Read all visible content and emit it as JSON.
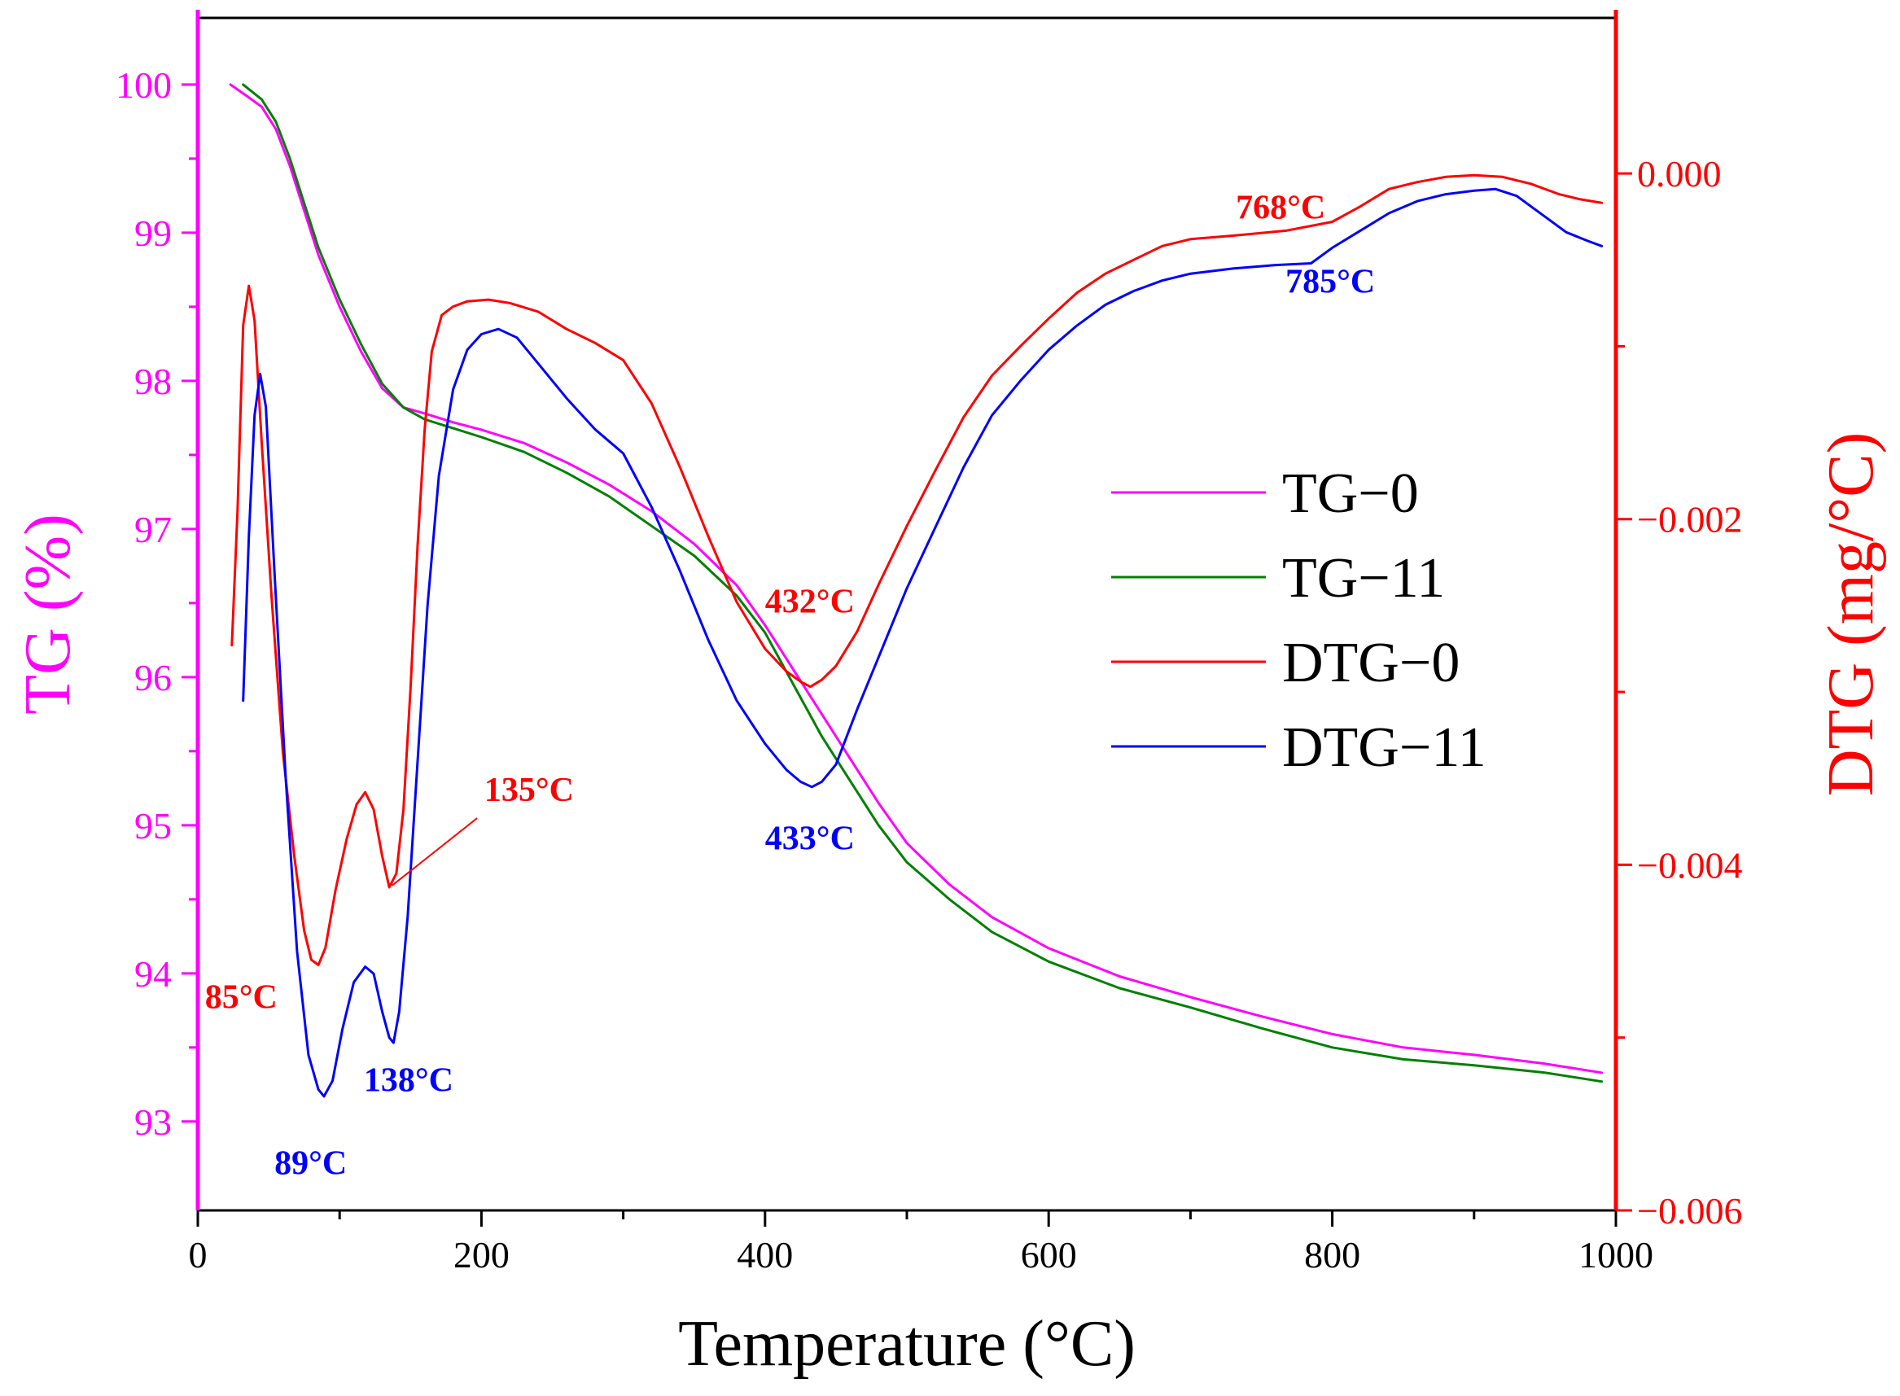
{
  "chart_data": {
    "type": "line",
    "x_axis": {
      "label": "Temperature (°C)",
      "range": [
        0,
        1000
      ],
      "ticks": [
        0,
        200,
        400,
        600,
        800,
        1000
      ],
      "tick_labels": [
        "0",
        "200",
        "400",
        "600",
        "800",
        "1000"
      ],
      "color": "#000000"
    },
    "y_axis_left": {
      "label": "TG (%)",
      "range": [
        92.4,
        100.45
      ],
      "ticks": [
        93,
        94,
        95,
        96,
        97,
        98,
        99,
        100
      ],
      "tick_labels": [
        "93",
        "94",
        "95",
        "96",
        "97",
        "98",
        "99",
        "100"
      ],
      "color": "#ff00ff"
    },
    "y_axis_right": {
      "label": "DTG (mg/°C)",
      "range": [
        -0.006,
        0.0009
      ],
      "ticks": [
        0.0,
        -0.002,
        -0.004,
        -0.006
      ],
      "tick_labels": [
        "0.000",
        "−0.002",
        "−0.004",
        "−0.006"
      ],
      "color": "#ff0000"
    },
    "series": [
      {
        "name": "TG−0",
        "axis": "left",
        "color": "#ff00ff",
        "points": [
          [
            23,
            100.0
          ],
          [
            35,
            99.92
          ],
          [
            45,
            99.85
          ],
          [
            55,
            99.7
          ],
          [
            65,
            99.45
          ],
          [
            75,
            99.15
          ],
          [
            85,
            98.85
          ],
          [
            100,
            98.5
          ],
          [
            115,
            98.2
          ],
          [
            130,
            97.95
          ],
          [
            145,
            97.82
          ],
          [
            160,
            97.78
          ],
          [
            180,
            97.72
          ],
          [
            200,
            97.67
          ],
          [
            230,
            97.58
          ],
          [
            260,
            97.45
          ],
          [
            290,
            97.3
          ],
          [
            320,
            97.12
          ],
          [
            350,
            96.9
          ],
          [
            380,
            96.62
          ],
          [
            400,
            96.35
          ],
          [
            420,
            96.05
          ],
          [
            440,
            95.75
          ],
          [
            460,
            95.45
          ],
          [
            480,
            95.15
          ],
          [
            500,
            94.88
          ],
          [
            530,
            94.6
          ],
          [
            560,
            94.38
          ],
          [
            600,
            94.17
          ],
          [
            650,
            93.98
          ],
          [
            700,
            93.84
          ],
          [
            750,
            93.71
          ],
          [
            800,
            93.59
          ],
          [
            850,
            93.5
          ],
          [
            900,
            93.45
          ],
          [
            950,
            93.39
          ],
          [
            990,
            93.33
          ]
        ]
      },
      {
        "name": "TG−11",
        "axis": "left",
        "color": "#008000",
        "points": [
          [
            32,
            100.0
          ],
          [
            45,
            99.9
          ],
          [
            55,
            99.75
          ],
          [
            65,
            99.5
          ],
          [
            75,
            99.2
          ],
          [
            85,
            98.9
          ],
          [
            100,
            98.55
          ],
          [
            115,
            98.25
          ],
          [
            130,
            97.98
          ],
          [
            145,
            97.82
          ],
          [
            160,
            97.74
          ],
          [
            180,
            97.68
          ],
          [
            200,
            97.62
          ],
          [
            230,
            97.52
          ],
          [
            260,
            97.38
          ],
          [
            290,
            97.22
          ],
          [
            320,
            97.02
          ],
          [
            350,
            96.82
          ],
          [
            380,
            96.55
          ],
          [
            400,
            96.3
          ],
          [
            420,
            95.95
          ],
          [
            440,
            95.6
          ],
          [
            460,
            95.3
          ],
          [
            480,
            95.0
          ],
          [
            500,
            94.75
          ],
          [
            530,
            94.5
          ],
          [
            560,
            94.28
          ],
          [
            600,
            94.08
          ],
          [
            650,
            93.9
          ],
          [
            700,
            93.77
          ],
          [
            750,
            93.63
          ],
          [
            800,
            93.5
          ],
          [
            850,
            93.42
          ],
          [
            900,
            93.38
          ],
          [
            950,
            93.33
          ],
          [
            990,
            93.27
          ]
        ]
      },
      {
        "name": "DTG−0",
        "axis": "right",
        "color": "#ff0000",
        "points": [
          [
            24,
            -0.00273
          ],
          [
            28,
            -0.00195
          ],
          [
            32,
            -0.00088
          ],
          [
            36,
            -0.00065
          ],
          [
            40,
            -0.00085
          ],
          [
            45,
            -0.00155
          ],
          [
            52,
            -0.00245
          ],
          [
            60,
            -0.00335
          ],
          [
            68,
            -0.00395
          ],
          [
            75,
            -0.00438
          ],
          [
            80,
            -0.00455
          ],
          [
            85,
            -0.00458
          ],
          [
            90,
            -0.00448
          ],
          [
            97,
            -0.00415
          ],
          [
            105,
            -0.00385
          ],
          [
            112,
            -0.00365
          ],
          [
            118,
            -0.00358
          ],
          [
            124,
            -0.00368
          ],
          [
            130,
            -0.00395
          ],
          [
            135,
            -0.00413
          ],
          [
            140,
            -0.00405
          ],
          [
            145,
            -0.00368
          ],
          [
            150,
            -0.00298
          ],
          [
            155,
            -0.00215
          ],
          [
            160,
            -0.00148
          ],
          [
            165,
            -0.00103
          ],
          [
            172,
            -0.00082
          ],
          [
            180,
            -0.00077
          ],
          [
            190,
            -0.00074
          ],
          [
            205,
            -0.00073
          ],
          [
            220,
            -0.00075
          ],
          [
            240,
            -0.0008
          ],
          [
            260,
            -0.0009
          ],
          [
            280,
            -0.00098
          ],
          [
            300,
            -0.00108
          ],
          [
            320,
            -0.00133
          ],
          [
            340,
            -0.0017
          ],
          [
            360,
            -0.0021
          ],
          [
            380,
            -0.00248
          ],
          [
            400,
            -0.00275
          ],
          [
            415,
            -0.00288
          ],
          [
            425,
            -0.00294
          ],
          [
            432,
            -0.00297
          ],
          [
            440,
            -0.00293
          ],
          [
            450,
            -0.00285
          ],
          [
            465,
            -0.00265
          ],
          [
            480,
            -0.00238
          ],
          [
            500,
            -0.00204
          ],
          [
            520,
            -0.00172
          ],
          [
            540,
            -0.00141
          ],
          [
            560,
            -0.00117
          ],
          [
            580,
            -0.001
          ],
          [
            600,
            -0.00084
          ],
          [
            620,
            -0.00069
          ],
          [
            640,
            -0.00058
          ],
          [
            660,
            -0.0005
          ],
          [
            680,
            -0.00042
          ],
          [
            700,
            -0.00038
          ],
          [
            730,
            -0.00036
          ],
          [
            768,
            -0.00033
          ],
          [
            800,
            -0.00028
          ],
          [
            820,
            -0.00019
          ],
          [
            840,
            -9e-05
          ],
          [
            860,
            -5e-05
          ],
          [
            880,
            -2e-05
          ],
          [
            900,
            -1e-05
          ],
          [
            920,
            -2e-05
          ],
          [
            940,
            -6e-05
          ],
          [
            960,
            -0.00012
          ],
          [
            975,
            -0.00015
          ],
          [
            990,
            -0.00017
          ]
        ]
      },
      {
        "name": "DTG−11",
        "axis": "right",
        "color": "#0000ff",
        "points": [
          [
            32,
            -0.00305
          ],
          [
            36,
            -0.0021
          ],
          [
            40,
            -0.0014
          ],
          [
            44,
            -0.00116
          ],
          [
            48,
            -0.00135
          ],
          [
            54,
            -0.0023
          ],
          [
            62,
            -0.0035
          ],
          [
            70,
            -0.0045
          ],
          [
            78,
            -0.0051
          ],
          [
            85,
            -0.0053
          ],
          [
            89,
            -0.00534
          ],
          [
            95,
            -0.00525
          ],
          [
            102,
            -0.00495
          ],
          [
            110,
            -0.00468
          ],
          [
            118,
            -0.00459
          ],
          [
            124,
            -0.00463
          ],
          [
            130,
            -0.00485
          ],
          [
            135,
            -0.005
          ],
          [
            138,
            -0.00503
          ],
          [
            142,
            -0.00485
          ],
          [
            148,
            -0.0043
          ],
          [
            155,
            -0.0034
          ],
          [
            162,
            -0.0025
          ],
          [
            170,
            -0.00175
          ],
          [
            180,
            -0.00125
          ],
          [
            190,
            -0.00102
          ],
          [
            200,
            -0.00093
          ],
          [
            212,
            -0.0009
          ],
          [
            225,
            -0.00095
          ],
          [
            240,
            -0.0011
          ],
          [
            260,
            -0.0013
          ],
          [
            280,
            -0.00148
          ],
          [
            300,
            -0.00162
          ],
          [
            320,
            -0.00193
          ],
          [
            340,
            -0.0023
          ],
          [
            360,
            -0.0027
          ],
          [
            380,
            -0.00305
          ],
          [
            400,
            -0.0033
          ],
          [
            415,
            -0.00345
          ],
          [
            425,
            -0.00352
          ],
          [
            433,
            -0.00355
          ],
          [
            440,
            -0.00352
          ],
          [
            450,
            -0.00342
          ],
          [
            465,
            -0.0031
          ],
          [
            480,
            -0.0028
          ],
          [
            500,
            -0.0024
          ],
          [
            520,
            -0.00205
          ],
          [
            540,
            -0.0017
          ],
          [
            560,
            -0.0014
          ],
          [
            580,
            -0.0012
          ],
          [
            600,
            -0.00102
          ],
          [
            620,
            -0.00088
          ],
          [
            640,
            -0.00076
          ],
          [
            660,
            -0.00068
          ],
          [
            680,
            -0.00062
          ],
          [
            700,
            -0.00058
          ],
          [
            730,
            -0.00055
          ],
          [
            760,
            -0.00053
          ],
          [
            785,
            -0.00052
          ],
          [
            800,
            -0.00043
          ],
          [
            820,
            -0.00033
          ],
          [
            840,
            -0.00023
          ],
          [
            860,
            -0.00016
          ],
          [
            880,
            -0.00012
          ],
          [
            900,
            -0.0001
          ],
          [
            915,
            -9e-05
          ],
          [
            930,
            -0.00013
          ],
          [
            950,
            -0.00025
          ],
          [
            965,
            -0.00034
          ],
          [
            980,
            -0.00039
          ],
          [
            990,
            -0.00042
          ]
        ]
      }
    ],
    "annotations": [
      {
        "text": "85°C",
        "color": "#ff0000",
        "x": 85,
        "y": -0.00458,
        "axis": "right",
        "label_x": 5,
        "label_y": -0.00483,
        "leader": false
      },
      {
        "text": "135°C",
        "color": "#ff0000",
        "x": 135,
        "y": -0.00413,
        "axis": "right",
        "label_x": 202,
        "label_y": -0.00363,
        "leader": true,
        "leader_from_x": 137,
        "leader_from_y": -0.00412,
        "leader_to_x": 197,
        "leader_to_y": -0.00373
      },
      {
        "text": "89°C",
        "color": "#0000ff",
        "x": 89,
        "y": -0.00534,
        "axis": "right",
        "label_x": 54,
        "label_y": -0.00579,
        "leader": false
      },
      {
        "text": "138°C",
        "color": "#0000ff",
        "x": 138,
        "y": -0.00503,
        "axis": "right",
        "label_x": 117,
        "label_y": -0.00531,
        "leader": false
      },
      {
        "text": "432°C",
        "color": "#ff0000",
        "x": 432,
        "y": -0.00297,
        "axis": "right",
        "label_x": 400,
        "label_y": -0.00254,
        "leader": false
      },
      {
        "text": "433°C",
        "color": "#0000ff",
        "x": 433,
        "y": -0.00355,
        "axis": "right",
        "label_x": 400,
        "label_y": -0.00391,
        "leader": false
      },
      {
        "text": "768°C",
        "color": "#ff0000",
        "x": 768,
        "y": -0.00033,
        "axis": "right",
        "label_x": 732,
        "label_y": -0.00026,
        "leader": false
      },
      {
        "text": "785°C",
        "color": "#0000ff",
        "x": 785,
        "y": -0.00052,
        "axis": "right",
        "label_x": 767,
        "label_y": -0.00069,
        "leader": false
      }
    ],
    "legend": {
      "position": "center-right",
      "entries": [
        "TG−0",
        "TG−11",
        "DTG−0",
        "DTG−11"
      ]
    }
  }
}
